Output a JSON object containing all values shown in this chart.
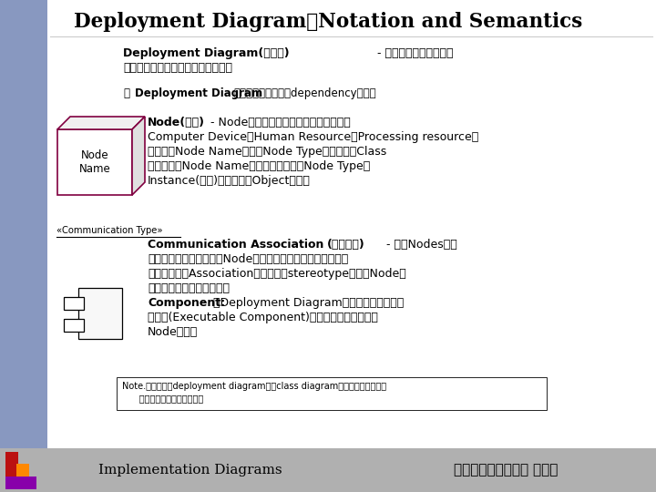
{
  "title": "Deployment Diagram：Notation and Semantics",
  "left_bar_color": "#8898c0",
  "slide_bg": "#dde4f0",
  "footer_bg": "#b0b0b0",
  "node_color": "#800040",
  "node_label": "Node\nName",
  "comm_label": "«Communication Type»",
  "footer_left": "Implementation Diagrams",
  "footer_right": "東吴大學資訊科學系 江清水",
  "note_l1": "Note.基本上可把deployment diagram視為class diagram的一種，只是焦點是",
  "note_l2": "      放在系統中節點之間的關係",
  "p1_bold": "Deployment Diagram(配置圖)",
  "p1_rest": " - 描述系統執行時軟體及",
  "p1_l2": "硬體的架構，屬於系統層次的描述。",
  "p2_pre": "在",
  "p2_bold": "Deployment Diagram",
  "p2_rest": "中可以出現的元素有dependency以及：",
  "p3_bold": "Node(節點)",
  "p3_l1": " - Node是一種實際的物件，可以用來代表",
  "p3_l2": "Computer Device、Human Resource、Processing resource；",
  "p3_l3": "單純加上Node Name表示為Node Type，其意義與Class",
  "p3_l4": "相同，如果Node Name加上底線，表示為Node Type的",
  "p3_l5": "Instance(實例)，其意義與Object相同。",
  "p4_bold1": "Communication Association",
  "p4_bold2": "(通訊關連)",
  "p4_l1": " - 用於Nodes間相",
  "p4_l2": "連的關係，常用於表示「Node」的物件及訊息的交換與傳遞，",
  "p4_l3": "可以是一般的Association，也可以用stereotype表示「Node」",
  "p4_l4": "間所使用的訊息傳輸方式。",
  "p5_bold": "Component:",
  "p5_l1": "在Deployment Diagram中，只可以出現可執",
  "p5_l2": "行元件(Executable Component)，可以獨立存在或放在",
  "p5_l3": "Node內部。"
}
